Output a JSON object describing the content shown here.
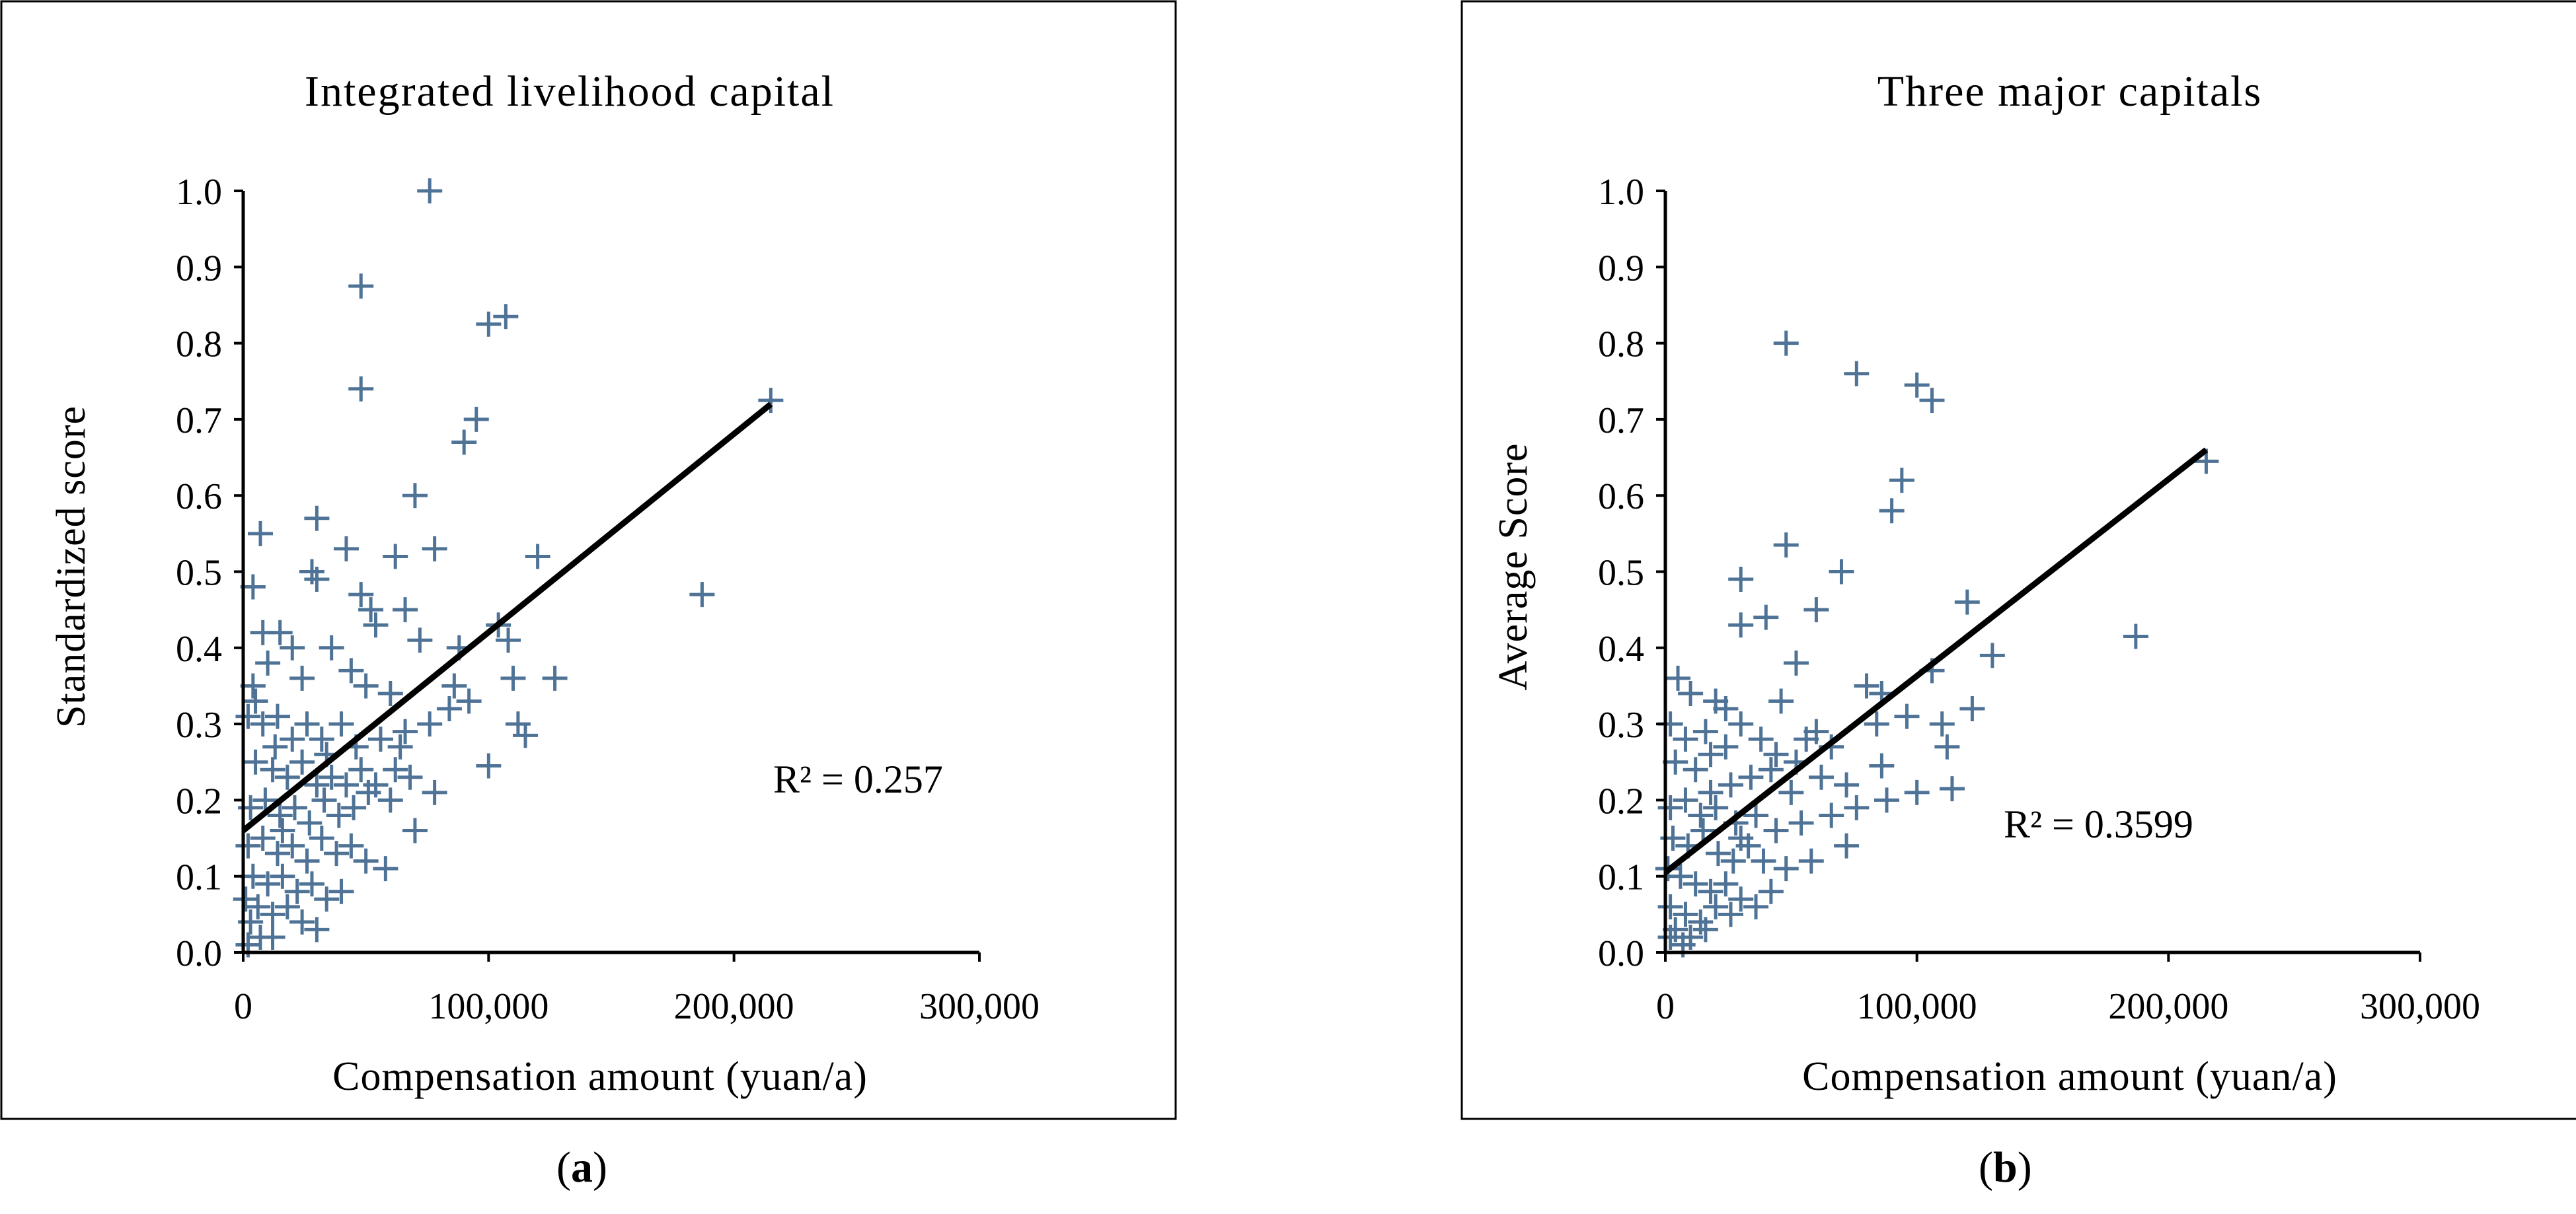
{
  "chart_data": [
    {
      "type": "scatter",
      "title": "Integrated livelihood capital",
      "xlabel": "Compensation amount (yuan/a)",
      "ylabel": "Standardized score",
      "xlim": [
        0,
        300000
      ],
      "ylim": [
        0,
        1.0
      ],
      "x_ticks": [
        "0",
        "100,000",
        "200,000",
        "300,000"
      ],
      "y_ticks": [
        "0.0",
        "0.1",
        "0.2",
        "0.3",
        "0.4",
        "0.5",
        "0.6",
        "0.7",
        "0.8",
        "0.9",
        "1.0"
      ],
      "grid": false,
      "marker": "+",
      "marker_color": "#4f7396",
      "trendline": {
        "x": [
          0,
          215000
        ],
        "y": [
          0.16,
          0.72
        ]
      },
      "annotation": "R² = 0.257",
      "caption_letter": "a",
      "points": [
        [
          76000,
          1.0
        ],
        [
          48000,
          0.875
        ],
        [
          100000,
          0.825
        ],
        [
          107000,
          0.835
        ],
        [
          48000,
          0.74
        ],
        [
          95000,
          0.7
        ],
        [
          90000,
          0.67
        ],
        [
          215000,
          0.725
        ],
        [
          70000,
          0.6
        ],
        [
          7000,
          0.55
        ],
        [
          30000,
          0.57
        ],
        [
          42000,
          0.53
        ],
        [
          62000,
          0.52
        ],
        [
          78000,
          0.53
        ],
        [
          120000,
          0.52
        ],
        [
          187000,
          0.47
        ],
        [
          28000,
          0.5
        ],
        [
          30000,
          0.49
        ],
        [
          4000,
          0.48
        ],
        [
          48000,
          0.47
        ],
        [
          52000,
          0.45
        ],
        [
          66000,
          0.45
        ],
        [
          54000,
          0.43
        ],
        [
          104000,
          0.43
        ],
        [
          108000,
          0.41
        ],
        [
          36000,
          0.4
        ],
        [
          72000,
          0.41
        ],
        [
          88000,
          0.4
        ],
        [
          8000,
          0.42
        ],
        [
          15000,
          0.42
        ],
        [
          20000,
          0.4
        ],
        [
          10000,
          0.38
        ],
        [
          4000,
          0.35
        ],
        [
          24000,
          0.36
        ],
        [
          44000,
          0.37
        ],
        [
          50000,
          0.35
        ],
        [
          60000,
          0.34
        ],
        [
          86000,
          0.35
        ],
        [
          110000,
          0.36
        ],
        [
          127000,
          0.36
        ],
        [
          2000,
          0.31
        ],
        [
          8000,
          0.3
        ],
        [
          14000,
          0.31
        ],
        [
          20000,
          0.28
        ],
        [
          26000,
          0.3
        ],
        [
          32000,
          0.28
        ],
        [
          40000,
          0.3
        ],
        [
          46000,
          0.27
        ],
        [
          56000,
          0.28
        ],
        [
          66000,
          0.29
        ],
        [
          76000,
          0.3
        ],
        [
          84000,
          0.32
        ],
        [
          92000,
          0.33
        ],
        [
          112000,
          0.3
        ],
        [
          115000,
          0.285
        ],
        [
          5000,
          0.25
        ],
        [
          12000,
          0.24
        ],
        [
          18000,
          0.23
        ],
        [
          24000,
          0.25
        ],
        [
          30000,
          0.22
        ],
        [
          36000,
          0.23
        ],
        [
          42000,
          0.22
        ],
        [
          48000,
          0.24
        ],
        [
          54000,
          0.22
        ],
        [
          62000,
          0.24
        ],
        [
          68000,
          0.23
        ],
        [
          78000,
          0.21
        ],
        [
          100000,
          0.245
        ],
        [
          3000,
          0.19
        ],
        [
          9000,
          0.2
        ],
        [
          15000,
          0.18
        ],
        [
          21000,
          0.19
        ],
        [
          27000,
          0.17
        ],
        [
          33000,
          0.2
        ],
        [
          39000,
          0.18
        ],
        [
          45000,
          0.19
        ],
        [
          51000,
          0.21
        ],
        [
          60000,
          0.2
        ],
        [
          70000,
          0.16
        ],
        [
          2000,
          0.14
        ],
        [
          8000,
          0.15
        ],
        [
          14000,
          0.13
        ],
        [
          20000,
          0.14
        ],
        [
          26000,
          0.12
        ],
        [
          32000,
          0.15
        ],
        [
          38000,
          0.13
        ],
        [
          44000,
          0.14
        ],
        [
          50000,
          0.12
        ],
        [
          58000,
          0.11
        ],
        [
          4000,
          0.1
        ],
        [
          10000,
          0.09
        ],
        [
          16000,
          0.1
        ],
        [
          22000,
          0.08
        ],
        [
          28000,
          0.09
        ],
        [
          34000,
          0.07
        ],
        [
          40000,
          0.08
        ],
        [
          1000,
          0.07
        ],
        [
          6000,
          0.06
        ],
        [
          12000,
          0.05
        ],
        [
          18000,
          0.06
        ],
        [
          24000,
          0.04
        ],
        [
          30000,
          0.03
        ],
        [
          3000,
          0.04
        ],
        [
          7000,
          0.02
        ],
        [
          2000,
          0.01
        ],
        [
          12000,
          0.02
        ],
        [
          16000,
          0.16
        ],
        [
          34000,
          0.26
        ],
        [
          64000,
          0.27
        ],
        [
          5000,
          0.33
        ],
        [
          13000,
          0.27
        ]
      ]
    },
    {
      "type": "scatter",
      "title": "Three major capitals",
      "xlabel": "Compensation amount (yuan/a)",
      "ylabel": "Average Score",
      "xlim": [
        0,
        300000
      ],
      "ylim": [
        0,
        1.0
      ],
      "x_ticks": [
        "0",
        "100,000",
        "200,000",
        "300,000"
      ],
      "y_ticks": [
        "0.0",
        "0.1",
        "0.2",
        "0.3",
        "0.4",
        "0.5",
        "0.6",
        "0.7",
        "0.8",
        "0.9",
        "1.0"
      ],
      "grid": false,
      "marker": "+",
      "marker_color": "#4f7396",
      "trendline": {
        "x": [
          0,
          215000
        ],
        "y": [
          0.105,
          0.66
        ]
      },
      "annotation": "R² = 0.3599",
      "caption_letter": "b",
      "points": [
        [
          48000,
          0.8
        ],
        [
          76000,
          0.76
        ],
        [
          100000,
          0.745
        ],
        [
          106000,
          0.725
        ],
        [
          215000,
          0.645
        ],
        [
          94000,
          0.62
        ],
        [
          90000,
          0.58
        ],
        [
          48000,
          0.535
        ],
        [
          30000,
          0.49
        ],
        [
          70000,
          0.5
        ],
        [
          60000,
          0.45
        ],
        [
          120000,
          0.46
        ],
        [
          30000,
          0.43
        ],
        [
          40000,
          0.44
        ],
        [
          187000,
          0.415
        ],
        [
          130000,
          0.39
        ],
        [
          52000,
          0.38
        ],
        [
          80000,
          0.35
        ],
        [
          106000,
          0.37
        ],
        [
          5000,
          0.36
        ],
        [
          10000,
          0.34
        ],
        [
          20000,
          0.33
        ],
        [
          46000,
          0.33
        ],
        [
          86000,
          0.34
        ],
        [
          2000,
          0.3
        ],
        [
          8000,
          0.28
        ],
        [
          16000,
          0.29
        ],
        [
          24000,
          0.27
        ],
        [
          30000,
          0.3
        ],
        [
          38000,
          0.28
        ],
        [
          44000,
          0.26
        ],
        [
          56000,
          0.28
        ],
        [
          66000,
          0.27
        ],
        [
          84000,
          0.3
        ],
        [
          96000,
          0.31
        ],
        [
          110000,
          0.3
        ],
        [
          122000,
          0.32
        ],
        [
          4000,
          0.25
        ],
        [
          12000,
          0.24
        ],
        [
          18000,
          0.26
        ],
        [
          26000,
          0.22
        ],
        [
          34000,
          0.23
        ],
        [
          42000,
          0.24
        ],
        [
          50000,
          0.21
        ],
        [
          62000,
          0.23
        ],
        [
          72000,
          0.22
        ],
        [
          112000,
          0.27
        ],
        [
          114000,
          0.215
        ],
        [
          100000,
          0.21
        ],
        [
          2000,
          0.19
        ],
        [
          8000,
          0.2
        ],
        [
          14000,
          0.18
        ],
        [
          20000,
          0.19
        ],
        [
          28000,
          0.17
        ],
        [
          36000,
          0.18
        ],
        [
          44000,
          0.16
        ],
        [
          54000,
          0.17
        ],
        [
          66000,
          0.18
        ],
        [
          76000,
          0.19
        ],
        [
          88000,
          0.2
        ],
        [
          3000,
          0.15
        ],
        [
          9000,
          0.14
        ],
        [
          15000,
          0.16
        ],
        [
          21000,
          0.13
        ],
        [
          27000,
          0.12
        ],
        [
          33000,
          0.14
        ],
        [
          39000,
          0.12
        ],
        [
          48000,
          0.11
        ],
        [
          58000,
          0.12
        ],
        [
          72000,
          0.14
        ],
        [
          1000,
          0.11
        ],
        [
          6000,
          0.1
        ],
        [
          12000,
          0.09
        ],
        [
          18000,
          0.08
        ],
        [
          24000,
          0.09
        ],
        [
          30000,
          0.07
        ],
        [
          36000,
          0.06
        ],
        [
          42000,
          0.08
        ],
        [
          2000,
          0.06
        ],
        [
          8000,
          0.05
        ],
        [
          14000,
          0.04
        ],
        [
          20000,
          0.06
        ],
        [
          26000,
          0.05
        ],
        [
          4000,
          0.03
        ],
        [
          10000,
          0.02
        ],
        [
          16000,
          0.03
        ],
        [
          2000,
          0.02
        ],
        [
          7000,
          0.01
        ],
        [
          52000,
          0.25
        ],
        [
          60000,
          0.29
        ],
        [
          18000,
          0.21
        ],
        [
          30000,
          0.15
        ],
        [
          86000,
          0.245
        ],
        [
          24000,
          0.32
        ]
      ]
    }
  ]
}
